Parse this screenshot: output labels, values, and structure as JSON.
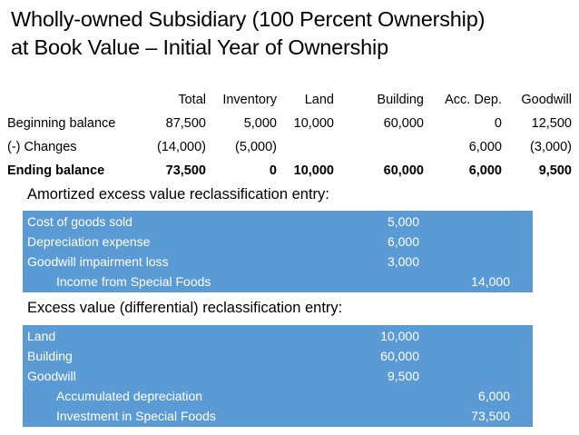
{
  "title": {
    "line1": "Wholly-owned Subsidiary (100 Percent Ownership)",
    "line2": "at Book Value – Initial Year of Ownership"
  },
  "summary_table": {
    "headers": [
      "",
      "Total",
      "Inventory",
      "Land",
      "Building",
      "Acc. Dep.",
      "Goodwill"
    ],
    "rows": [
      {
        "label": "Beginning balance",
        "cells": [
          "87,500",
          "5,000",
          "10,000",
          "60,000",
          "0",
          "12,500"
        ],
        "bold": false
      },
      {
        "label": "(-) Changes",
        "cells": [
          "(14,000)",
          "(5,000)",
          "",
          "",
          "6,000",
          "(3,000)"
        ],
        "bold": false
      },
      {
        "label": "Ending balance",
        "cells": [
          "73,500",
          "0",
          "10,000",
          "60,000",
          "6,000",
          "9,500"
        ],
        "bold": true
      }
    ]
  },
  "entries": [
    {
      "heading": "Amortized excess value reclassification entry:",
      "lines": [
        {
          "account": "Cost of goods sold",
          "debit": "5,000",
          "credit": "",
          "indent": false
        },
        {
          "account": "Depreciation expense",
          "debit": "6,000",
          "credit": "",
          "indent": false
        },
        {
          "account": "Goodwill impairment loss",
          "debit": "3,000",
          "credit": "",
          "indent": false
        },
        {
          "account": "Income from Special Foods",
          "debit": "",
          "credit": "14,000",
          "indent": true
        }
      ]
    },
    {
      "heading": "Excess value (differential) reclassification entry:",
      "lines": [
        {
          "account": "Land",
          "debit": "10,000",
          "credit": "",
          "indent": false
        },
        {
          "account": "Building",
          "debit": "60,000",
          "credit": "",
          "indent": false
        },
        {
          "account": "Goodwill",
          "debit": "9,500",
          "credit": "",
          "indent": false
        },
        {
          "account": "Accumulated depreciation",
          "debit": "",
          "credit": "6,000",
          "indent": true
        },
        {
          "account": "Investment in Special Foods",
          "debit": "",
          "credit": "73,500",
          "indent": true
        }
      ]
    }
  ],
  "colors": {
    "entry_box": "#5b9bd5",
    "entry_text": "#ffffff"
  }
}
